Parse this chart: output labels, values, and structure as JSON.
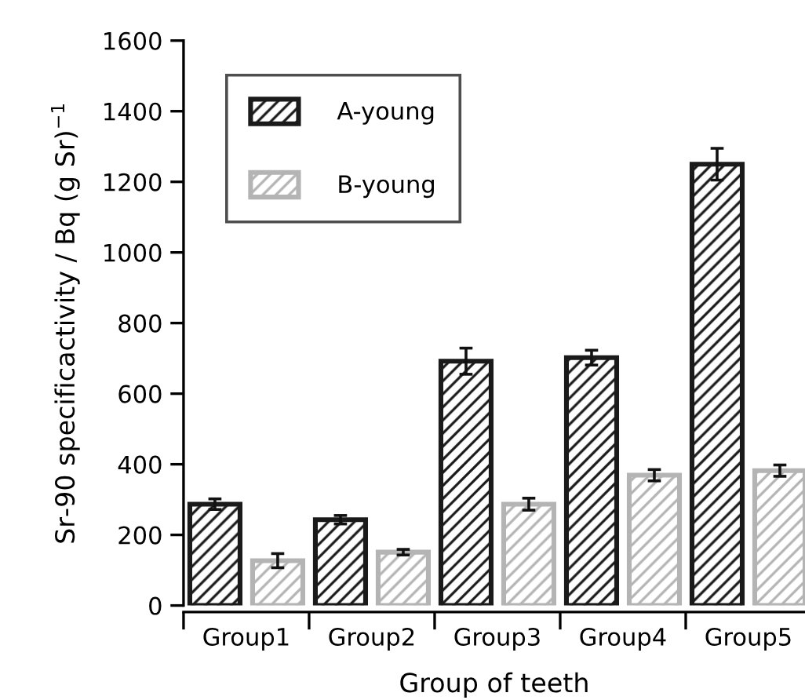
{
  "chart_data": {
    "type": "bar",
    "xlabel": "Group of teeth",
    "ylabel": "Sr-90 specificactivity / Bq (g Sr)$^{−1}$",
    "categories": [
      "Group1",
      "Group2",
      "Group3",
      "Group4",
      "Group5"
    ],
    "series": [
      {
        "name": "A-young",
        "color": "#1a1a1a",
        "values": [
          287,
          243,
          692,
          702,
          1250
        ],
        "errors": [
          15,
          12,
          37,
          21,
          45
        ]
      },
      {
        "name": "B-young",
        "color": "#b4b4b4",
        "values": [
          127,
          151,
          287,
          369,
          382
        ],
        "errors": [
          20,
          8,
          17,
          16,
          16
        ]
      }
    ],
    "ylim": [
      0,
      1600
    ],
    "yticks": [
      0,
      200,
      400,
      600,
      800,
      1000,
      1200,
      1400,
      1600
    ],
    "legend": "top left"
  }
}
